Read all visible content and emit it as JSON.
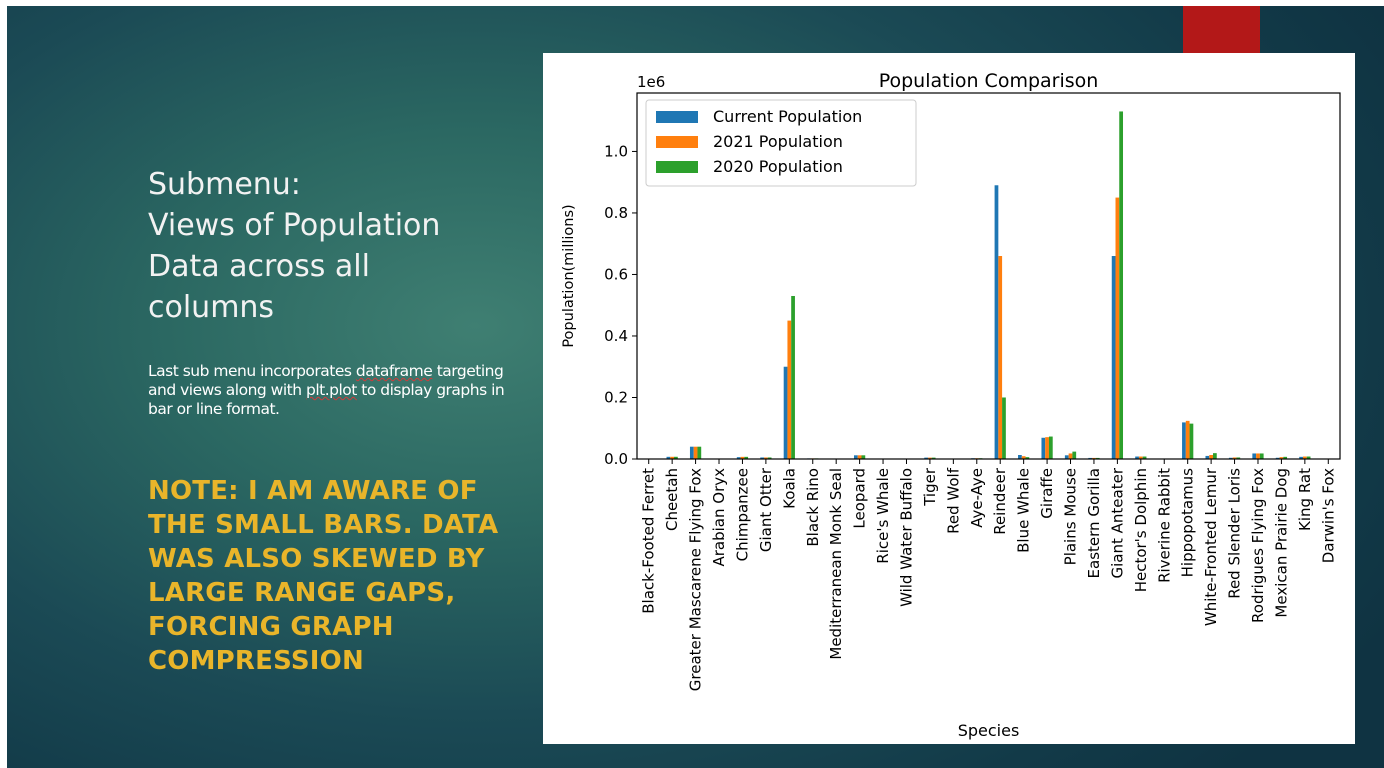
{
  "slide": {
    "title_lines": [
      "Submenu:",
      "Views of Population",
      "Data across all",
      "columns"
    ],
    "body_parts": [
      "Last sub menu incorporates ",
      "dataframe",
      " targeting and views along with ",
      "plt.plot",
      " to display graphs in bar or line format."
    ],
    "note": "NOTE: I AM AWARE OF THE SMALL BARS. DATA WAS ALSO SKEWED BY LARGE RANGE GAPS, FORCING GRAPH COMPRESSION",
    "colors": {
      "accent_bar": "#b31818",
      "note_text": "#e9b52a",
      "title_text": "#f2f2f2"
    }
  },
  "chart_data": {
    "type": "bar",
    "title": "Population Comparison",
    "xlabel": "Species",
    "ylabel": "Population(millions)",
    "y_offset_label": "1e6",
    "ylim": [
      0,
      1.19
    ],
    "y_ticks": [
      "0.0",
      "0.2",
      "0.4",
      "0.6",
      "0.8",
      "1.0"
    ],
    "y_tick_values": [
      0,
      0.2,
      0.4,
      0.6,
      0.8,
      1.0
    ],
    "legend_position": "upper-left",
    "categories": [
      "Black-Footed Ferret",
      "Cheetah",
      "Greater Mascarene Flying Fox",
      "Arabian Oryx",
      "Chimpanzee",
      "Giant Otter",
      "Koala",
      "Black Rino",
      "Mediterranean Monk Seal",
      "Leopard",
      "Rice's Whale",
      "Wild Water Buffalo",
      "Tiger",
      "Red Wolf",
      "Aye-Aye",
      "Reindeer",
      "Blue Whale",
      "Giraffe",
      "Plains Mouse",
      "Eastern Gorilla",
      "Giant Anteater",
      "Hector's Dolphin",
      "Riverine Rabbit",
      "Hippopotamus",
      "White-Fronted Lemur",
      "Red Slender Loris",
      "Rodrigues Flying Fox",
      "Mexican Prairie Dog",
      "King Rat",
      "Darwin's Fox"
    ],
    "series": [
      {
        "name": "Current Population",
        "color": "#1f77b4",
        "values": [
          0.0003,
          0.0071,
          0.04,
          0.001,
          0.006,
          0.005,
          0.3,
          0.002,
          0.0007,
          0.012,
          0.0001,
          0.0004,
          0.0045,
          0.0002,
          0.0025,
          0.89,
          0.013,
          0.069,
          0.012,
          0.0035,
          0.66,
          0.008,
          0.0003,
          0.119,
          0.01,
          0.004,
          0.018,
          0.004,
          0.007,
          0.0006
        ]
      },
      {
        "name": "2021 Population",
        "color": "#ff7f0e",
        "values": [
          0.0003,
          0.0072,
          0.04,
          0.001,
          0.007,
          0.005,
          0.45,
          0.002,
          0.0007,
          0.012,
          0.0001,
          0.0004,
          0.0045,
          0.0002,
          0.0025,
          0.66,
          0.009,
          0.071,
          0.018,
          0.0035,
          0.85,
          0.008,
          0.0003,
          0.124,
          0.013,
          0.005,
          0.018,
          0.006,
          0.008,
          0.0006
        ]
      },
      {
        "name": "2020 Population",
        "color": "#2ca02c",
        "values": [
          0.0003,
          0.0072,
          0.04,
          0.001,
          0.007,
          0.005,
          0.53,
          0.002,
          0.0007,
          0.012,
          0.0001,
          0.0004,
          0.0045,
          0.0002,
          0.0025,
          0.2,
          0.006,
          0.073,
          0.024,
          0.0035,
          1.13,
          0.008,
          0.0003,
          0.115,
          0.019,
          0.005,
          0.018,
          0.007,
          0.008,
          0.0006
        ]
      }
    ]
  }
}
